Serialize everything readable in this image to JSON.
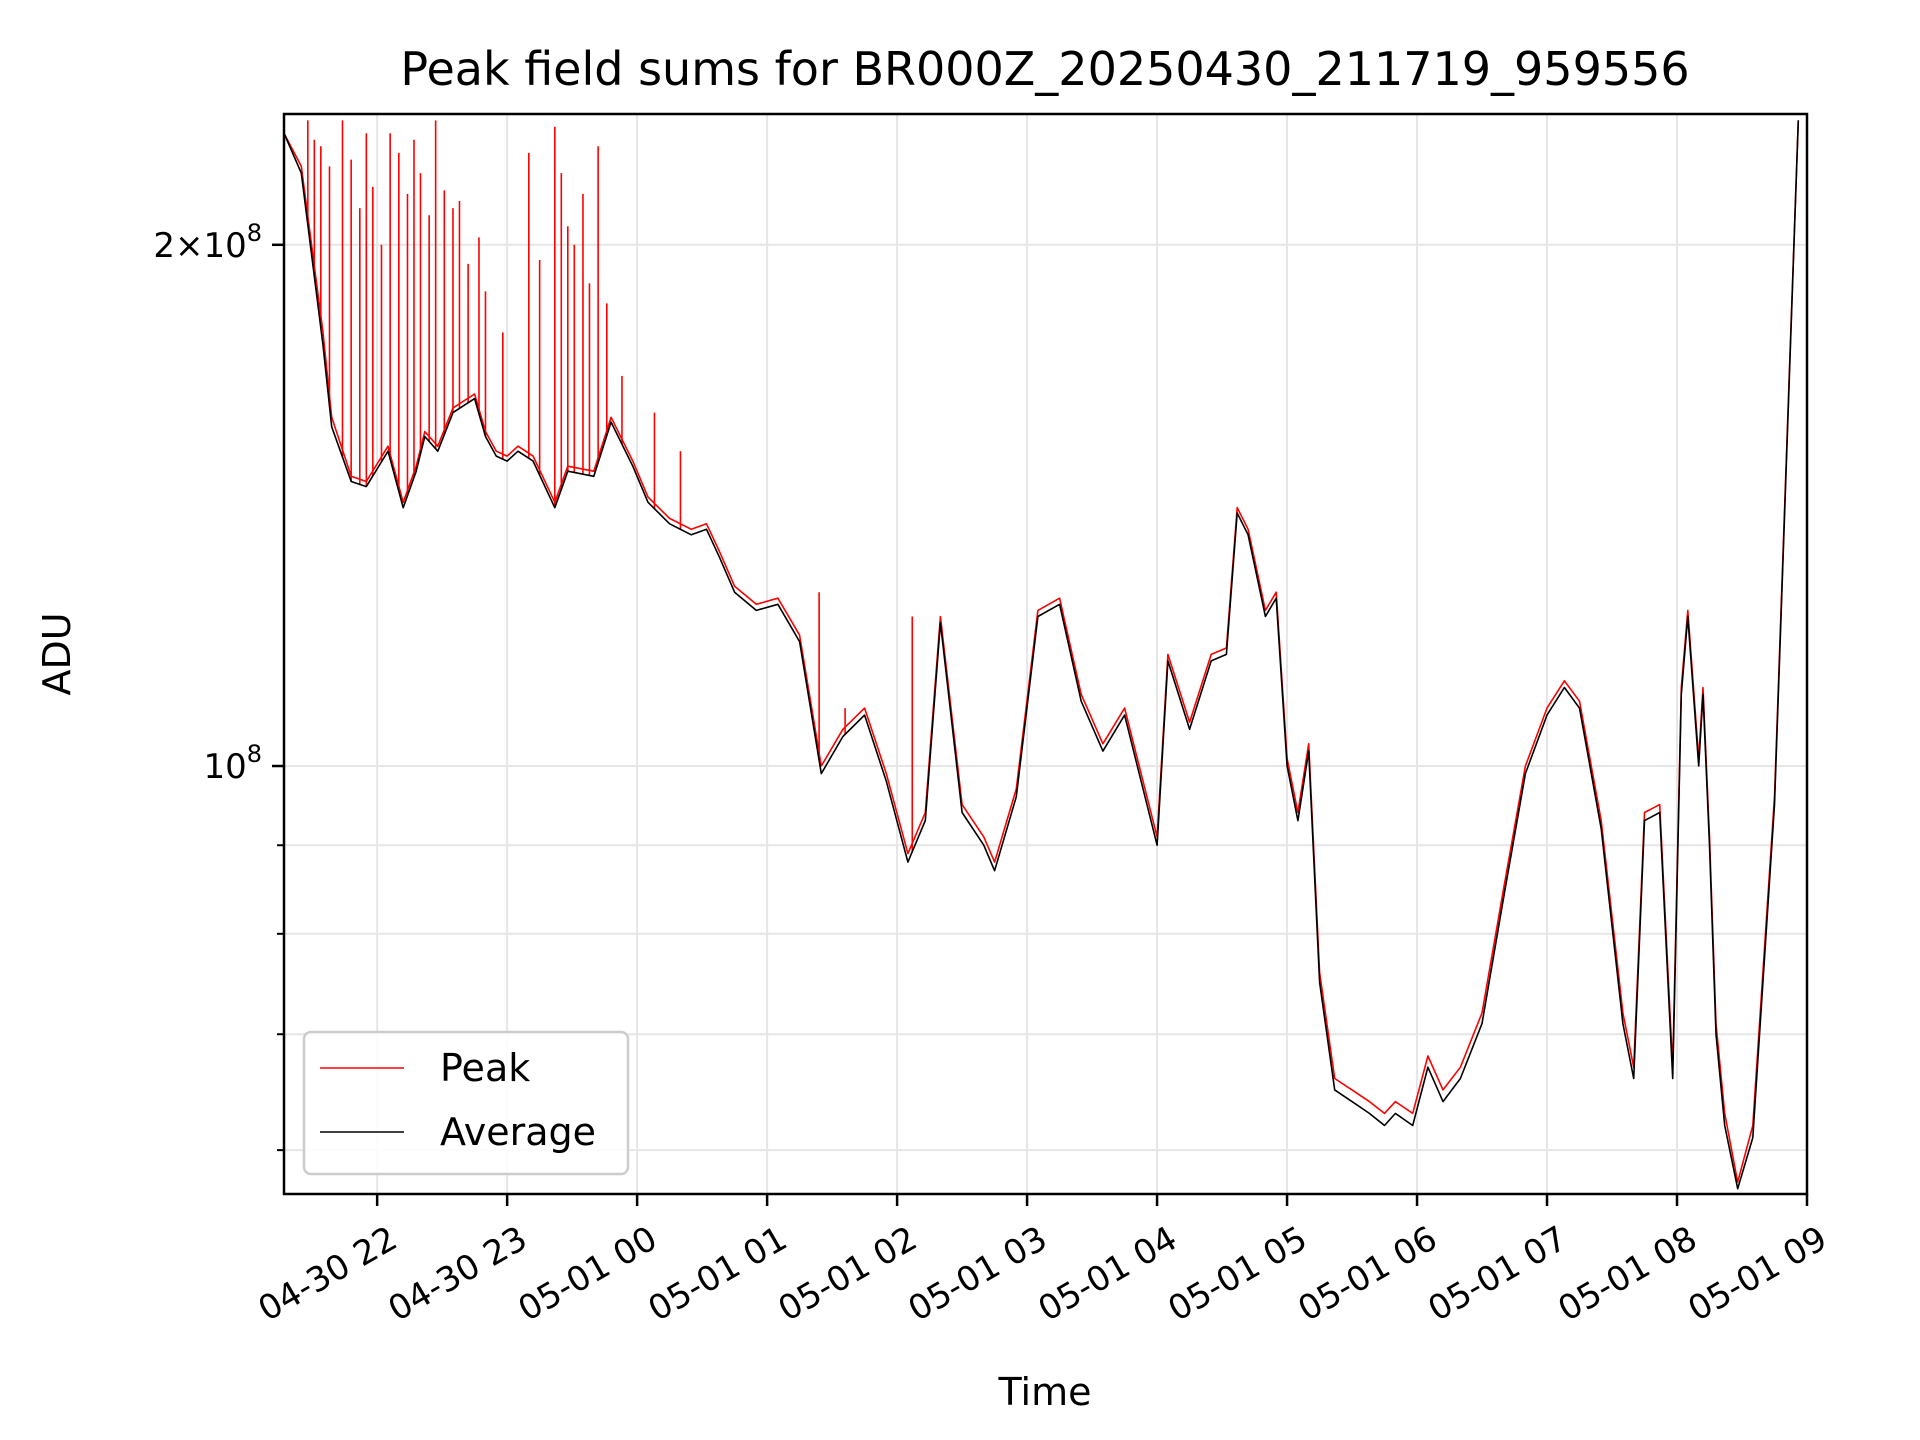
{
  "chart_data": {
    "type": "line",
    "title": "Peak field sums for BR000Z_20250430_211719_959556",
    "xlabel": "Time",
    "ylabel": "ADU",
    "yscale": "log",
    "grid": true,
    "legend_position": "lower-left",
    "xlim": [
      "2025-04-30 21:17",
      "2025-05-01 09:00"
    ],
    "ylim": [
      56600000,
      238000000
    ],
    "x_ticks": [
      "04-30 22",
      "04-30 23",
      "05-01 00",
      "05-01 01",
      "05-01 02",
      "05-01 03",
      "05-01 04",
      "05-01 05",
      "05-01 06",
      "05-01 07",
      "05-01 08",
      "05-01 09"
    ],
    "y_ticks": [
      {
        "value": 100000000,
        "mantissa": "",
        "exponent": "8"
      },
      {
        "value": 200000000,
        "mantissa": "2",
        "exponent": "8"
      }
    ],
    "y_minor_ticks": [
      60000000,
      70000000,
      80000000,
      90000000
    ],
    "series": [
      {
        "name": "Average",
        "color": "#000000",
        "x": [
          "2025-04-30 21:17",
          "2025-04-30 21:25",
          "2025-04-30 21:35",
          "2025-04-30 21:39",
          "2025-04-30 21:48",
          "2025-04-30 21:55",
          "2025-04-30 22:05",
          "2025-04-30 22:12",
          "2025-04-30 22:18",
          "2025-04-30 22:22",
          "2025-04-30 22:28",
          "2025-04-30 22:35",
          "2025-04-30 22:45",
          "2025-04-30 22:50",
          "2025-04-30 22:55",
          "2025-04-30 23:00",
          "2025-04-30 23:05",
          "2025-04-30 23:12",
          "2025-04-30 23:22",
          "2025-04-30 23:28",
          "2025-04-30 23:40",
          "2025-04-30 23:48",
          "2025-04-30 23:58",
          "2025-05-01 00:05",
          "2025-05-01 00:15",
          "2025-05-01 00:25",
          "2025-05-01 00:32",
          "2025-05-01 00:38",
          "2025-05-01 00:45",
          "2025-05-01 00:55",
          "2025-05-01 01:05",
          "2025-05-01 01:15",
          "2025-05-01 01:25",
          "2025-05-01 01:35",
          "2025-05-01 01:45",
          "2025-05-01 01:55",
          "2025-05-01 02:05",
          "2025-05-01 02:13",
          "2025-05-01 02:20",
          "2025-05-01 02:30",
          "2025-05-01 02:40",
          "2025-05-01 02:45",
          "2025-05-01 02:55",
          "2025-05-01 03:05",
          "2025-05-01 03:15",
          "2025-05-01 03:25",
          "2025-05-01 03:35",
          "2025-05-01 03:45",
          "2025-05-01 04:00",
          "2025-05-01 04:05",
          "2025-05-01 04:15",
          "2025-05-01 04:25",
          "2025-05-01 04:32",
          "2025-05-01 04:37",
          "2025-05-01 04:42",
          "2025-05-01 04:50",
          "2025-05-01 04:55",
          "2025-05-01 05:00",
          "2025-05-01 05:05",
          "2025-05-01 05:10",
          "2025-05-01 05:15",
          "2025-05-01 05:22",
          "2025-05-01 05:30",
          "2025-05-01 05:38",
          "2025-05-01 05:45",
          "2025-05-01 05:50",
          "2025-05-01 05:58",
          "2025-05-01 06:05",
          "2025-05-01 06:12",
          "2025-05-01 06:20",
          "2025-05-01 06:30",
          "2025-05-01 06:40",
          "2025-05-01 06:50",
          "2025-05-01 07:00",
          "2025-05-01 07:08",
          "2025-05-01 07:15",
          "2025-05-01 07:25",
          "2025-05-01 07:35",
          "2025-05-01 07:40",
          "2025-05-01 07:45",
          "2025-05-01 07:52",
          "2025-05-01 07:58",
          "2025-05-01 08:02",
          "2025-05-01 08:05",
          "2025-05-01 08:10",
          "2025-05-01 08:12",
          "2025-05-01 08:15",
          "2025-05-01 08:18",
          "2025-05-01 08:22",
          "2025-05-01 08:28",
          "2025-05-01 08:35",
          "2025-05-01 08:45",
          "2025-05-01 08:52",
          "2025-05-01 08:56"
        ],
        "y": [
          232000000,
          220000000,
          175000000,
          157000000,
          146000000,
          145000000,
          152000000,
          141000000,
          148000000,
          155000000,
          152000000,
          160000000,
          163000000,
          155000000,
          151000000,
          150000000,
          152000000,
          150000000,
          141000000,
          148000000,
          147000000,
          158000000,
          149000000,
          142000000,
          138000000,
          136000000,
          137000000,
          132000000,
          126000000,
          123000000,
          124000000,
          118000000,
          99000000,
          104000000,
          107000000,
          98000000,
          88000000,
          93000000,
          121000000,
          94000000,
          90000000,
          87000000,
          96000000,
          122000000,
          124000000,
          109000000,
          102000000,
          107000000,
          90000000,
          115000000,
          105000000,
          115000000,
          116000000,
          140000000,
          136000000,
          122000000,
          125000000,
          100000000,
          93000000,
          102000000,
          75000000,
          65000000,
          64000000,
          63000000,
          62000000,
          63000000,
          62000000,
          67000000,
          64000000,
          66000000,
          71000000,
          84000000,
          99000000,
          107000000,
          111000000,
          108000000,
          92000000,
          71000000,
          66000000,
          93000000,
          94000000,
          66000000,
          110000000,
          122000000,
          100000000,
          110000000,
          90000000,
          70000000,
          62000000,
          57000000,
          61000000,
          95000000,
          170000000,
          236000000
        ]
      },
      {
        "name": "Peak",
        "color": "#ff0000",
        "x": [
          "2025-04-30 21:17",
          "2025-04-30 21:25",
          "2025-04-30 21:35",
          "2025-04-30 21:39",
          "2025-04-30 21:48",
          "2025-04-30 21:55",
          "2025-04-30 22:05",
          "2025-04-30 22:12",
          "2025-04-30 22:18",
          "2025-04-30 22:22",
          "2025-04-30 22:28",
          "2025-04-30 22:35",
          "2025-04-30 22:45",
          "2025-04-30 22:50",
          "2025-04-30 22:55",
          "2025-04-30 23:00",
          "2025-04-30 23:05",
          "2025-04-30 23:12",
          "2025-04-30 23:22",
          "2025-04-30 23:28",
          "2025-04-30 23:40",
          "2025-04-30 23:48",
          "2025-04-30 23:58",
          "2025-05-01 00:05",
          "2025-05-01 00:15",
          "2025-05-01 00:25",
          "2025-05-01 00:32",
          "2025-05-01 00:38",
          "2025-05-01 00:45",
          "2025-05-01 00:55",
          "2025-05-01 01:05",
          "2025-05-01 01:15",
          "2025-05-01 01:25",
          "2025-05-01 01:35",
          "2025-05-01 01:45",
          "2025-05-01 01:55",
          "2025-05-01 02:05",
          "2025-05-01 02:13",
          "2025-05-01 02:20",
          "2025-05-01 02:30",
          "2025-05-01 02:40",
          "2025-05-01 02:45",
          "2025-05-01 02:55",
          "2025-05-01 03:05",
          "2025-05-01 03:15",
          "2025-05-01 03:25",
          "2025-05-01 03:35",
          "2025-05-01 03:45",
          "2025-05-01 04:00",
          "2025-05-01 04:05",
          "2025-05-01 04:15",
          "2025-05-01 04:25",
          "2025-05-01 04:32",
          "2025-05-01 04:37",
          "2025-05-01 04:42",
          "2025-05-01 04:50",
          "2025-05-01 04:55",
          "2025-05-01 05:00",
          "2025-05-01 05:05",
          "2025-05-01 05:10",
          "2025-05-01 05:15",
          "2025-05-01 05:22",
          "2025-05-01 05:30",
          "2025-05-01 05:38",
          "2025-05-01 05:45",
          "2025-05-01 05:50",
          "2025-05-01 05:58",
          "2025-05-01 06:05",
          "2025-05-01 06:12",
          "2025-05-01 06:20",
          "2025-05-01 06:30",
          "2025-05-01 06:40",
          "2025-05-01 06:50",
          "2025-05-01 07:00",
          "2025-05-01 07:08",
          "2025-05-01 07:15",
          "2025-05-01 07:25",
          "2025-05-01 07:35",
          "2025-05-01 07:40",
          "2025-05-01 07:45",
          "2025-05-01 07:52",
          "2025-05-01 07:58",
          "2025-05-01 08:02",
          "2025-05-01 08:05",
          "2025-05-01 08:10",
          "2025-05-01 08:12",
          "2025-05-01 08:15",
          "2025-05-01 08:18",
          "2025-05-01 08:22",
          "2025-05-01 08:28",
          "2025-05-01 08:35",
          "2025-05-01 08:45",
          "2025-05-01 08:52",
          "2025-05-01 08:56"
        ],
        "y": [
          232000000,
          222000000,
          178000000,
          159000000,
          147000000,
          146000000,
          153000000,
          142000000,
          149000000,
          156000000,
          153000000,
          161000000,
          164000000,
          156000000,
          152000000,
          151000000,
          153000000,
          151000000,
          142000000,
          149000000,
          148000000,
          159000000,
          150000000,
          143000000,
          139000000,
          137000000,
          138000000,
          133000000,
          127000000,
          124000000,
          125000000,
          119000000,
          100000000,
          105000000,
          108000000,
          99000000,
          89000000,
          94000000,
          122000000,
          95000000,
          91000000,
          88000000,
          97000000,
          123000000,
          125000000,
          110000000,
          103000000,
          108000000,
          91000000,
          116000000,
          106000000,
          116000000,
          117000000,
          141000000,
          137000000,
          123000000,
          126000000,
          101000000,
          94000000,
          103000000,
          76000000,
          66000000,
          65000000,
          64000000,
          63000000,
          64000000,
          63000000,
          68000000,
          65000000,
          67000000,
          72000000,
          85000000,
          100000000,
          108000000,
          112000000,
          109000000,
          93000000,
          72000000,
          67000000,
          94000000,
          95000000,
          67000000,
          111000000,
          123000000,
          101000000,
          111000000,
          91000000,
          71000000,
          63000000,
          57500000,
          62000000,
          96000000,
          171000000,
          236000000
        ]
      }
    ],
    "peak_spikes": [
      {
        "x": "2025-04-30 21:28",
        "y": 236000000
      },
      {
        "x": "2025-04-30 21:31",
        "y": 230000000
      },
      {
        "x": "2025-04-30 21:34",
        "y": 228000000
      },
      {
        "x": "2025-04-30 21:38",
        "y": 222000000
      },
      {
        "x": "2025-04-30 21:44",
        "y": 236000000
      },
      {
        "x": "2025-04-30 21:48",
        "y": 224000000
      },
      {
        "x": "2025-04-30 21:52",
        "y": 210000000
      },
      {
        "x": "2025-04-30 21:55",
        "y": 232000000
      },
      {
        "x": "2025-04-30 21:58",
        "y": 216000000
      },
      {
        "x": "2025-04-30 22:02",
        "y": 200000000
      },
      {
        "x": "2025-04-30 22:06",
        "y": 232000000
      },
      {
        "x": "2025-04-30 22:10",
        "y": 226000000
      },
      {
        "x": "2025-04-30 22:14",
        "y": 214000000
      },
      {
        "x": "2025-04-30 22:17",
        "y": 230000000
      },
      {
        "x": "2025-04-30 22:20",
        "y": 220000000
      },
      {
        "x": "2025-04-30 22:24",
        "y": 208000000
      },
      {
        "x": "2025-04-30 22:27",
        "y": 236000000
      },
      {
        "x": "2025-04-30 22:31",
        "y": 215000000
      },
      {
        "x": "2025-04-30 22:35",
        "y": 210000000
      },
      {
        "x": "2025-04-30 22:38",
        "y": 212000000
      },
      {
        "x": "2025-04-30 22:42",
        "y": 195000000
      },
      {
        "x": "2025-04-30 22:47",
        "y": 202000000
      },
      {
        "x": "2025-04-30 22:50",
        "y": 188000000
      },
      {
        "x": "2025-04-30 22:58",
        "y": 178000000
      },
      {
        "x": "2025-04-30 23:10",
        "y": 226000000
      },
      {
        "x": "2025-04-30 23:15",
        "y": 196000000
      },
      {
        "x": "2025-04-30 23:22",
        "y": 234000000
      },
      {
        "x": "2025-04-30 23:25",
        "y": 220000000
      },
      {
        "x": "2025-04-30 23:28",
        "y": 205000000
      },
      {
        "x": "2025-04-30 23:31",
        "y": 200000000
      },
      {
        "x": "2025-04-30 23:35",
        "y": 214000000
      },
      {
        "x": "2025-04-30 23:38",
        "y": 190000000
      },
      {
        "x": "2025-04-30 23:42",
        "y": 228000000
      },
      {
        "x": "2025-04-30 23:46",
        "y": 185000000
      },
      {
        "x": "2025-04-30 23:53",
        "y": 168000000
      },
      {
        "x": "2025-05-01 00:08",
        "y": 160000000
      },
      {
        "x": "2025-05-01 00:20",
        "y": 152000000
      },
      {
        "x": "2025-05-01 01:24",
        "y": 126000000
      },
      {
        "x": "2025-05-01 01:36",
        "y": 108000000
      },
      {
        "x": "2025-05-01 02:07",
        "y": 122000000
      }
    ]
  }
}
